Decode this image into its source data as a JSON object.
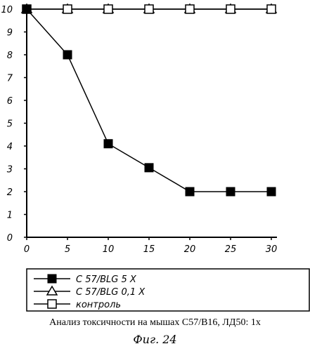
{
  "chart_data": {
    "type": "line",
    "x": [
      0,
      5,
      10,
      15,
      20,
      25,
      30
    ],
    "xlim": [
      0,
      30
    ],
    "ylim": [
      0,
      10
    ],
    "x_ticks": [
      "0",
      "5",
      "10",
      "15",
      "20",
      "25",
      "30"
    ],
    "y_ticks": [
      "0",
      "1",
      "2",
      "3",
      "4",
      "5",
      "6",
      "7",
      "8",
      "9",
      "10"
    ],
    "grid": false,
    "legend_position": "bottom",
    "series": [
      {
        "name": "C 57/BLG 5 X",
        "marker": "filled-square",
        "values": [
          10,
          8,
          4.1,
          3.05,
          2,
          2,
          2
        ]
      },
      {
        "name": "C 57/BLG 0,1 X",
        "marker": "open-triangle",
        "values": [
          10,
          10,
          10,
          10,
          10,
          10,
          10
        ]
      },
      {
        "name": "контроль",
        "marker": "open-square",
        "values": [
          10,
          10,
          10,
          10,
          10,
          10,
          10
        ]
      }
    ]
  },
  "caption": "Анализ токсичности на мышах C57/B16, ЛД50: 1х",
  "figure_label": "Фиг. 24"
}
